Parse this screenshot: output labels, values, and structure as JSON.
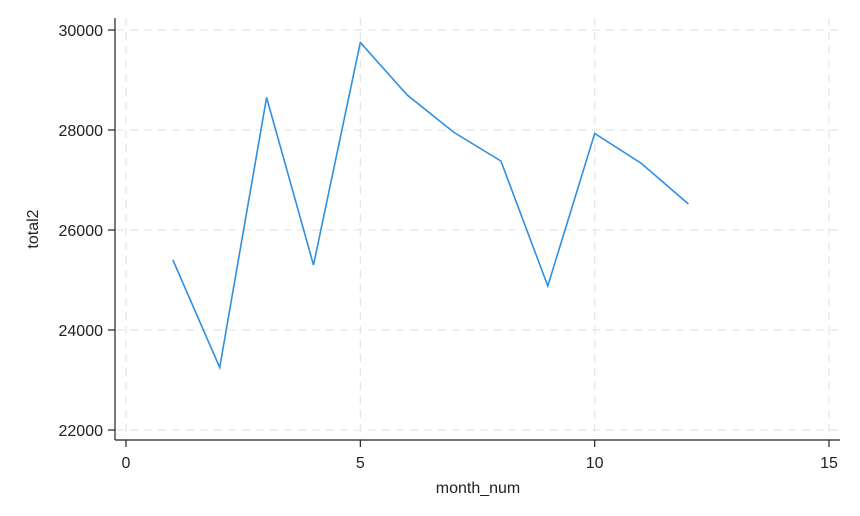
{
  "chart_data": {
    "type": "line",
    "title": "",
    "xlabel": "month_num",
    "ylabel": "total2",
    "xlim": [
      0,
      15
    ],
    "ylim": [
      22000,
      30000
    ],
    "xticks": [
      0,
      5,
      10,
      15
    ],
    "yticks": [
      22000,
      24000,
      26000,
      28000,
      30000
    ],
    "xtick_labels": [
      "0",
      "5",
      "10",
      "15"
    ],
    "ytick_labels": [
      "22000",
      "24000",
      "26000",
      "28000",
      "30000"
    ],
    "grid": true,
    "legend": "none",
    "line_color": "#2f8fe0",
    "series": [
      {
        "x": [
          1,
          2,
          3,
          4,
          5,
          6,
          7,
          8,
          9,
          10,
          11,
          12
        ],
        "values": [
          25400,
          23250,
          28650,
          25300,
          29750,
          28700,
          27950,
          27380,
          24880,
          27930,
          27330,
          26520
        ]
      }
    ]
  }
}
